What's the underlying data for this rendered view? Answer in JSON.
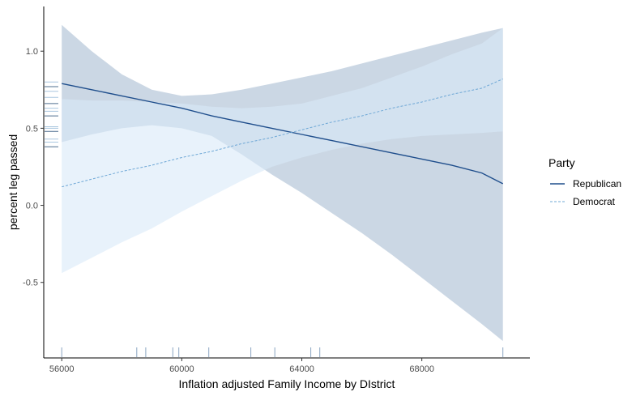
{
  "chart_data": {
    "type": "line",
    "title": "",
    "xlabel": "Inflation adjusted Family Income by DIstrict",
    "ylabel": "percent leg passed",
    "xlim": [
      55400,
      71600
    ],
    "ylim": [
      -0.99,
      1.29
    ],
    "x_ticks": [
      56000,
      60000,
      64000,
      68000
    ],
    "x_tick_labels": [
      "56000",
      "60000",
      "64000",
      "68000"
    ],
    "y_ticks": [
      -0.5,
      0.0,
      0.5,
      1.0
    ],
    "y_tick_labels": [
      "-0.5",
      "0.0",
      "0.5",
      "1.0"
    ],
    "grid": false,
    "legend": {
      "title": "Party",
      "position": "right"
    },
    "series": [
      {
        "name": "Republican",
        "color": "#1f4e8c",
        "dash": "solid",
        "band_color": "#b7c8d9",
        "x": [
          56000,
          57000,
          58000,
          59000,
          60000,
          61000,
          62000,
          63000,
          64000,
          65000,
          66000,
          67000,
          68000,
          69000,
          70000,
          70700
        ],
        "y": [
          0.79,
          0.75,
          0.71,
          0.67,
          0.63,
          0.58,
          0.54,
          0.5,
          0.46,
          0.42,
          0.38,
          0.34,
          0.3,
          0.26,
          0.21,
          0.14
        ],
        "upper": [
          1.17,
          1.0,
          0.85,
          0.75,
          0.71,
          0.72,
          0.75,
          0.79,
          0.83,
          0.87,
          0.92,
          0.97,
          1.02,
          1.07,
          1.12,
          1.15
        ],
        "lower": [
          0.41,
          0.46,
          0.5,
          0.52,
          0.5,
          0.45,
          0.33,
          0.2,
          0.08,
          -0.05,
          -0.18,
          -0.32,
          -0.47,
          -0.62,
          -0.77,
          -0.88
        ]
      },
      {
        "name": "Democrat",
        "color": "#6fa8d6",
        "dash": "dashed",
        "band_color": "#d8eaf8",
        "x": [
          56000,
          57000,
          58000,
          59000,
          60000,
          61000,
          62000,
          63000,
          64000,
          65000,
          66000,
          67000,
          68000,
          69000,
          70000,
          70700
        ],
        "y": [
          0.12,
          0.17,
          0.22,
          0.26,
          0.31,
          0.35,
          0.4,
          0.44,
          0.49,
          0.54,
          0.58,
          0.63,
          0.67,
          0.72,
          0.76,
          0.82
        ],
        "upper": [
          0.69,
          0.68,
          0.68,
          0.67,
          0.66,
          0.64,
          0.63,
          0.64,
          0.66,
          0.71,
          0.76,
          0.83,
          0.9,
          0.98,
          1.05,
          1.15
        ],
        "lower": [
          -0.44,
          -0.34,
          -0.24,
          -0.15,
          -0.04,
          0.06,
          0.16,
          0.25,
          0.31,
          0.36,
          0.4,
          0.43,
          0.45,
          0.46,
          0.47,
          0.48
        ]
      }
    ],
    "rug_x": [
      56000,
      58500,
      58800,
      59700,
      59900,
      60900,
      62300,
      63100,
      64300,
      64600,
      70700
    ],
    "rug_y": [
      0.38,
      0.41,
      0.43,
      0.48,
      0.5,
      0.51,
      0.58,
      0.61,
      0.63,
      0.66,
      0.7,
      0.74,
      0.77,
      0.8
    ]
  }
}
